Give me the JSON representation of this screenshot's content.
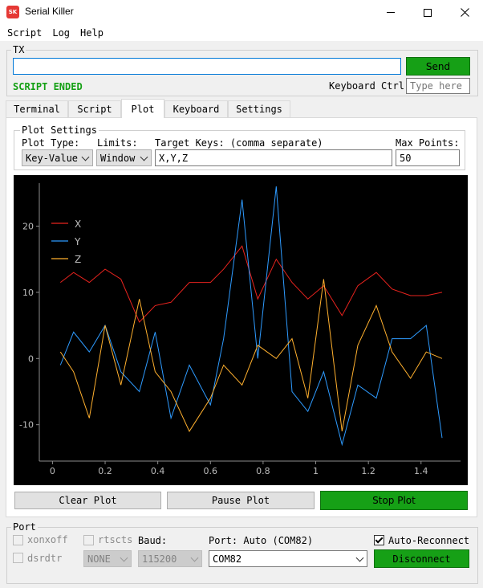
{
  "window": {
    "title": "Serial Killer",
    "logo_text": "SK"
  },
  "menu": [
    "Script",
    "Log",
    "Help"
  ],
  "tx": {
    "label": "TX",
    "input_value": "",
    "send_label": "Send",
    "status": "SCRIPT ENDED",
    "keyboard_ctrl_label": "Keyboard Ctrl",
    "keyboard_placeholder": "Type here"
  },
  "tabs": [
    "Terminal",
    "Script",
    "Plot",
    "Keyboard",
    "Settings"
  ],
  "active_tab": "Plot",
  "plot_settings": {
    "label": "Plot Settings",
    "plot_type_label": "Plot Type:",
    "plot_type_value": "Key-Value",
    "limits_label": "Limits:",
    "limits_value": "Window",
    "target_keys_label": "Target Keys: (comma separate)",
    "target_keys_value": "X,Y,Z",
    "max_points_label": "Max Points:",
    "max_points_value": "50"
  },
  "plot_buttons": {
    "clear": "Clear Plot",
    "pause": "Pause Plot",
    "stop": "Stop Plot"
  },
  "port": {
    "label": "Port",
    "xonxoff_label": "xonxoff",
    "rtscts_label": "rtscts",
    "dsrdtr_label": "dsrdtr",
    "baud_label": "Baud:",
    "parity_value": "NONE",
    "baud_value": "115200",
    "port_label": "Port: Auto (COM82)",
    "port_value": "COM82",
    "auto_reconnect_label": "Auto-Reconnect",
    "auto_reconnect_checked": true,
    "disconnect_label": "Disconnect"
  },
  "colors": {
    "green": "#16a016",
    "plot_bg": "#000000",
    "x": "#e8231e",
    "y": "#2e9bff",
    "z": "#ffb02e"
  },
  "chart_data": {
    "type": "line",
    "xlim": [
      -0.05,
      1.55
    ],
    "ylim": [
      -15.5,
      26.5
    ],
    "x_ticks": [
      0,
      0.2,
      0.4,
      0.6,
      0.8,
      1,
      1.2,
      1.4
    ],
    "x_tick_labels": [
      "0",
      "0.2",
      "0.4",
      "0.6",
      "0.8",
      "1",
      "1.2",
      "1.4"
    ],
    "y_ticks": [
      -10,
      0,
      10,
      20
    ],
    "y_tick_labels": [
      "-10",
      "0",
      "10",
      "20"
    ],
    "legend_position": "top-left",
    "grid": false,
    "series": [
      {
        "name": "X",
        "color": "#e8231e",
        "x": [
          0.03,
          0.08,
          0.14,
          0.2,
          0.26,
          0.33,
          0.39,
          0.45,
          0.52,
          0.6,
          0.65,
          0.72,
          0.78,
          0.85,
          0.91,
          0.97,
          1.03,
          1.1,
          1.16,
          1.23,
          1.29,
          1.36,
          1.42,
          1.48
        ],
        "y": [
          11.5,
          13,
          11.5,
          13.5,
          12,
          5.5,
          8,
          8.5,
          11.5,
          11.5,
          13.5,
          17,
          9,
          15,
          11.5,
          9,
          11,
          6.5,
          11,
          13,
          10.5,
          9.5,
          9.5,
          10
        ]
      },
      {
        "name": "Y",
        "color": "#2e9bff",
        "x": [
          0.03,
          0.08,
          0.14,
          0.2,
          0.26,
          0.33,
          0.39,
          0.45,
          0.52,
          0.6,
          0.65,
          0.72,
          0.78,
          0.85,
          0.91,
          0.97,
          1.03,
          1.1,
          1.16,
          1.23,
          1.29,
          1.36,
          1.42,
          1.48
        ],
        "y": [
          -1,
          4,
          1,
          5,
          -2,
          -5,
          4,
          -9,
          -1,
          -7,
          3,
          24,
          0,
          26,
          -5,
          -8,
          -2,
          -13,
          -4,
          -6,
          3,
          3,
          5,
          -12
        ]
      },
      {
        "name": "Z",
        "color": "#ffb02e",
        "x": [
          0.03,
          0.08,
          0.14,
          0.2,
          0.26,
          0.33,
          0.39,
          0.45,
          0.52,
          0.6,
          0.65,
          0.72,
          0.78,
          0.85,
          0.91,
          0.97,
          1.03,
          1.1,
          1.16,
          1.23,
          1.29,
          1.36,
          1.42,
          1.48
        ],
        "y": [
          1,
          -2,
          -9,
          5,
          -4,
          9,
          -2,
          -5,
          -11,
          -6,
          -1,
          -4,
          2,
          0,
          3,
          -6,
          12,
          -11,
          2,
          8,
          1,
          -3,
          1,
          0
        ]
      }
    ]
  }
}
